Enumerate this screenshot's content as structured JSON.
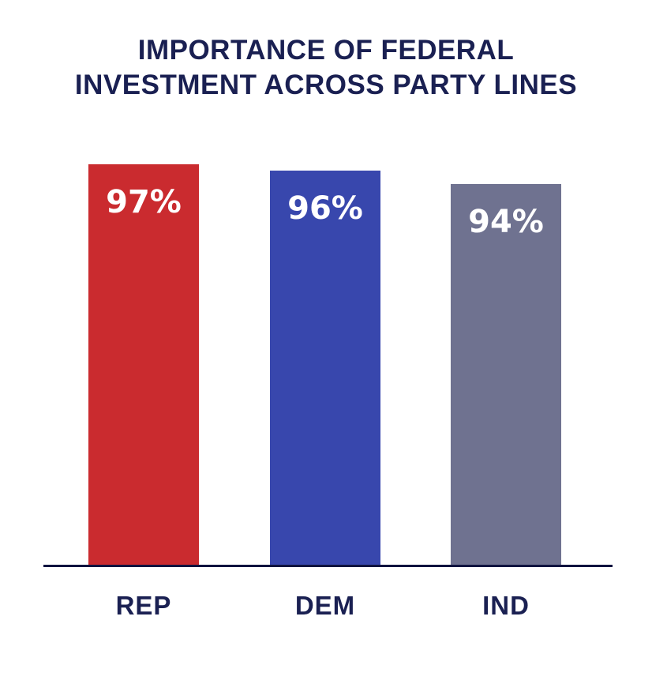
{
  "chart_data": {
    "type": "bar",
    "title": "IMPORTANCE OF FEDERAL INVESTMENT ACROSS PARTY LINES",
    "title_lines": [
      "IMPORTANCE OF FEDERAL",
      "INVESTMENT ACROSS PARTY LINES"
    ],
    "categories": [
      "REP",
      "DEM",
      "IND"
    ],
    "values": [
      97,
      96,
      94
    ],
    "value_labels": [
      "97%",
      "96%",
      "94%"
    ],
    "xlabel": "",
    "ylabel": "",
    "ylim": [
      0,
      100
    ],
    "grid": false,
    "legend": false,
    "bar_colors": [
      "#CA2B2F",
      "#3847AD",
      "#6F7290"
    ],
    "value_label_color": "#FFFFFF",
    "title_color": "#1A2052",
    "category_label_color": "#1A2052",
    "axis_line_color": "#101440",
    "background_color": "#FFFFFF"
  }
}
